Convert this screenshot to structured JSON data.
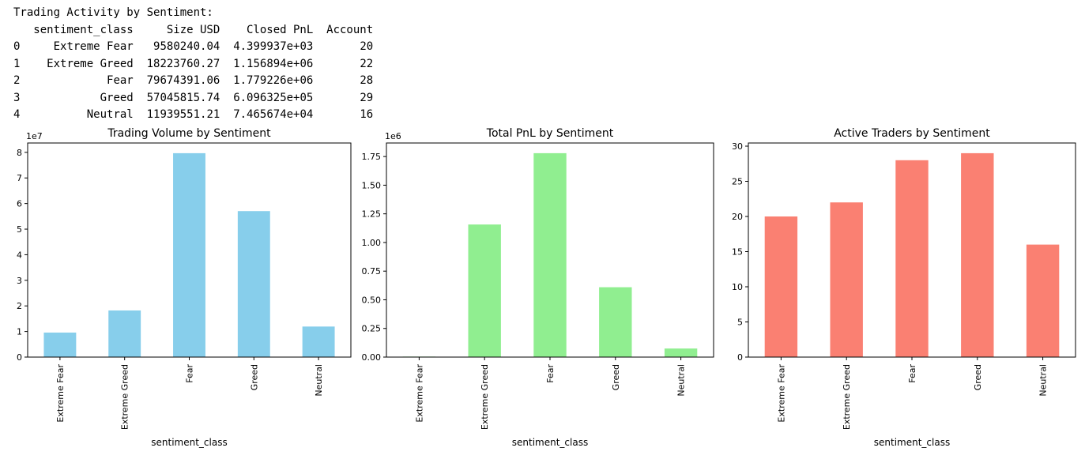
{
  "output": {
    "heading": "Trading Activity by Sentiment:",
    "table": {
      "columns": [
        "sentiment_class",
        "Size USD",
        "Closed PnL",
        "Account"
      ],
      "rows": [
        {
          "index": "0",
          "sentiment_class": "Extreme Fear",
          "size_usd": "9580240.04",
          "closed_pnl": "4.399937e+03",
          "account": "20"
        },
        {
          "index": "1",
          "sentiment_class": "Extreme Greed",
          "size_usd": "18223760.27",
          "closed_pnl": "1.156894e+06",
          "account": "22"
        },
        {
          "index": "2",
          "sentiment_class": "Fear",
          "size_usd": "79674391.06",
          "closed_pnl": "1.779226e+06",
          "account": "28"
        },
        {
          "index": "3",
          "sentiment_class": "Greed",
          "size_usd": "57045815.74",
          "closed_pnl": "6.096325e+05",
          "account": "29"
        },
        {
          "index": "4",
          "sentiment_class": "Neutral",
          "size_usd": "11939551.21",
          "closed_pnl": "7.465674e+04",
          "account": "16"
        }
      ]
    }
  },
  "chart_data": [
    {
      "type": "bar",
      "title": "Trading Volume by Sentiment",
      "xlabel": "sentiment_class",
      "ylabel": "",
      "offset_label": "1e7",
      "categories": [
        "Extreme Fear",
        "Extreme Greed",
        "Fear",
        "Greed",
        "Neutral"
      ],
      "values": [
        9580240.04,
        18223760.27,
        79674391.06,
        57045815.74,
        11939551.21
      ],
      "yticks": [
        "0",
        "1",
        "2",
        "3",
        "4",
        "5",
        "6",
        "7",
        "8"
      ],
      "ylim": [
        0,
        83658110.61
      ],
      "color": "#87ceeb",
      "grid": false
    },
    {
      "type": "bar",
      "title": "Total PnL by Sentiment",
      "xlabel": "sentiment_class",
      "ylabel": "",
      "offset_label": "1e6",
      "categories": [
        "Extreme Fear",
        "Extreme Greed",
        "Fear",
        "Greed",
        "Neutral"
      ],
      "values": [
        4399.937,
        1156894,
        1779226,
        609632.5,
        74656.74
      ],
      "yticks": [
        "0.00",
        "0.25",
        "0.50",
        "0.75",
        "1.00",
        "1.25",
        "1.50",
        "1.75"
      ],
      "ylim": [
        0,
        1868187
      ],
      "color": "#90ee90",
      "grid": false
    },
    {
      "type": "bar",
      "title": "Active Traders by Sentiment",
      "xlabel": "sentiment_class",
      "ylabel": "",
      "offset_label": "",
      "categories": [
        "Extreme Fear",
        "Extreme Greed",
        "Fear",
        "Greed",
        "Neutral"
      ],
      "values": [
        20,
        22,
        28,
        29,
        16
      ],
      "yticks": [
        "0",
        "5",
        "10",
        "15",
        "20",
        "25",
        "30"
      ],
      "ylim": [
        0,
        30.45
      ],
      "color": "#fa8072",
      "grid": false
    }
  ]
}
